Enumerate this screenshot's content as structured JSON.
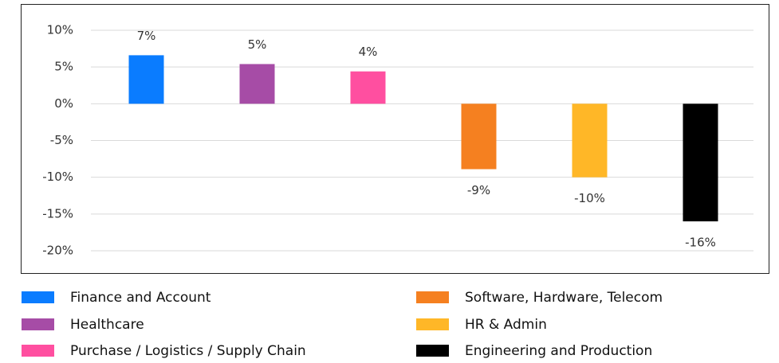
{
  "chart_data": {
    "type": "bar",
    "categories": [
      "Finance and Account",
      "Healthcare",
      "Purchase / Logistics / Supply Chain",
      "Software, Hardware, Telecom",
      "HR & Admin",
      "Engineering and Production"
    ],
    "values": [
      6.6,
      5.4,
      4.4,
      -8.9,
      -10,
      -16
    ],
    "value_labels": [
      "7%",
      "5%",
      "4%",
      "-9%",
      "-10%",
      "-16%"
    ],
    "colors": [
      "#0a7cff",
      "#a64ca6",
      "#ff4fa0",
      "#f58020",
      "#ffb727",
      "#000000"
    ],
    "ylim": [
      -20,
      10
    ],
    "yticks": [
      {
        "value": -20,
        "label": "-20%"
      },
      {
        "value": -15,
        "label": "-15%"
      },
      {
        "value": -10,
        "label": "-10%"
      },
      {
        "value": -5,
        "label": "-5%"
      },
      {
        "value": 0,
        "label": "0%"
      },
      {
        "value": 5,
        "label": "5%"
      },
      {
        "value": 10,
        "label": "10%"
      }
    ],
    "grid": true,
    "legend": "bottom"
  }
}
